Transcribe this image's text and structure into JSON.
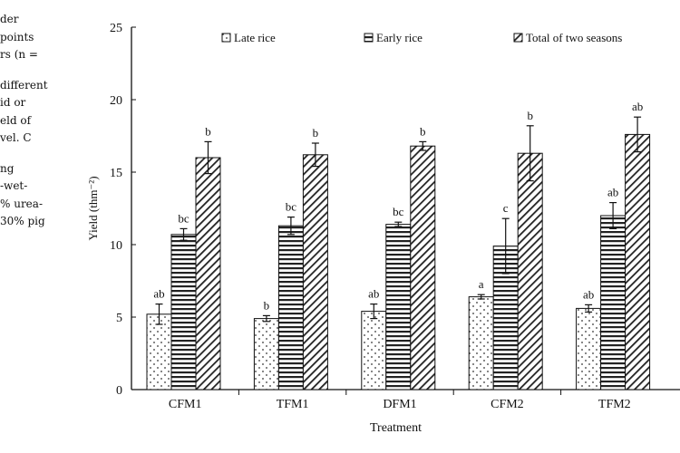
{
  "side_caption": {
    "lines": [
      "der",
      "points",
      "rs (n =",
      "",
      "different",
      "id or",
      "eld of",
      "vel. C",
      "",
      "ng",
      "-wet-",
      "% urea-",
      "30% pig"
    ]
  },
  "chart_data": {
    "type": "bar",
    "title": "",
    "xlabel": "Treatment",
    "ylabel": "Yield (thm⁻²)",
    "ylim": [
      0,
      25
    ],
    "yticks": [
      0,
      5,
      10,
      15,
      20,
      25
    ],
    "grid": false,
    "legend_position": "top",
    "categories": [
      "CFM1",
      "TFM1",
      "DFM1",
      "CFM2",
      "TFM2"
    ],
    "series": [
      {
        "name": "Late rice",
        "pattern": "dots",
        "values": [
          5.2,
          4.9,
          5.4,
          6.4,
          5.6
        ],
        "errors": [
          0.7,
          0.2,
          0.5,
          0.15,
          0.25
        ],
        "labels": [
          "ab",
          "b",
          "ab",
          "a",
          "ab"
        ]
      },
      {
        "name": "Early rice",
        "pattern": "horizontal-lines",
        "values": [
          10.7,
          11.3,
          11.4,
          9.9,
          12.0
        ],
        "errors": [
          0.4,
          0.6,
          0.15,
          1.9,
          0.9
        ],
        "labels": [
          "bc",
          "bc",
          "bc",
          "c",
          "ab"
        ]
      },
      {
        "name": "Total of two seasons",
        "pattern": "diagonal-lines",
        "values": [
          16.0,
          16.2,
          16.8,
          16.3,
          17.6
        ],
        "errors": [
          1.1,
          0.8,
          0.3,
          1.9,
          1.2
        ],
        "labels": [
          "b",
          "b",
          "b",
          "b",
          "ab"
        ]
      }
    ]
  }
}
